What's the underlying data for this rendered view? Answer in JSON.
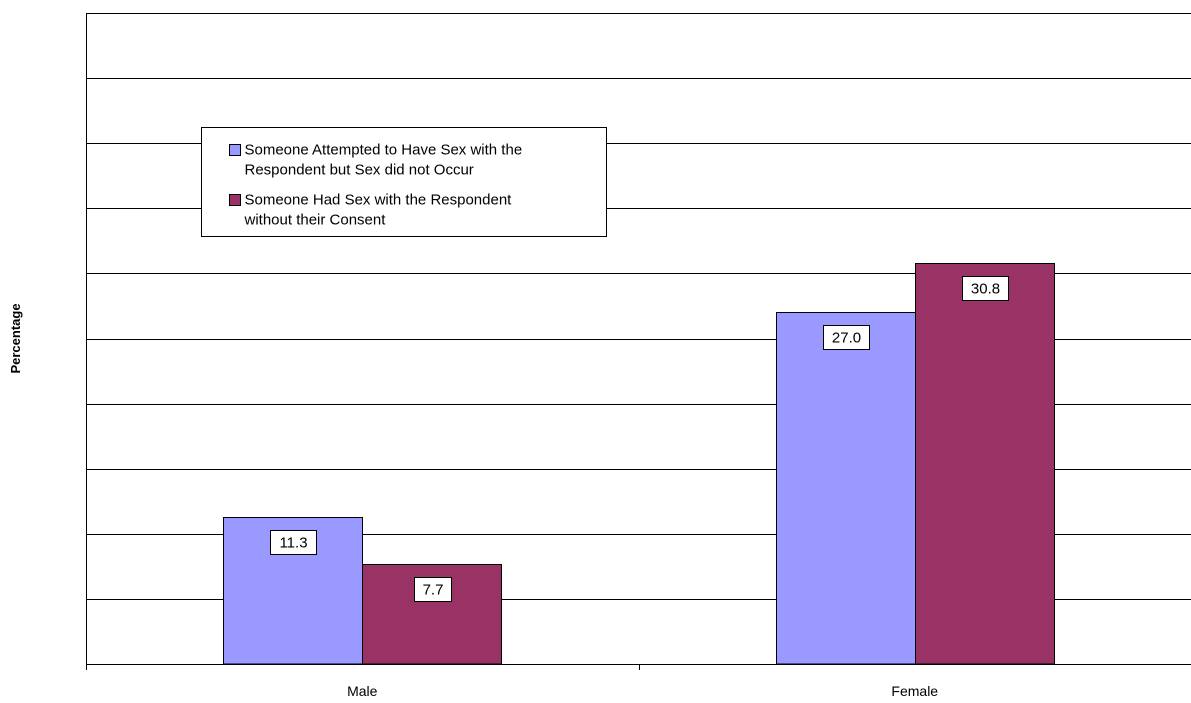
{
  "chart_data": {
    "type": "bar",
    "title": "",
    "xlabel": "",
    "ylabel": "Percentage",
    "ylim": [
      0,
      50
    ],
    "ytick_step": 5,
    "ytick_decimals": 1,
    "grid": true,
    "legend_position": "upper-left",
    "categories": [
      "Male",
      "Female"
    ],
    "series": [
      {
        "name": "Someone Attempted to Have Sex with the Respondent but Sex did not Occur",
        "legend_lines": [
          "Someone Attempted to Have Sex with the",
          "Respondent but Sex did not Occur"
        ],
        "color": "#9999ff",
        "values": [
          11.3,
          27.0
        ],
        "value_labels": [
          "11.3",
          "27.0"
        ]
      },
      {
        "name": "Someone Had Sex with the Respondent without their Consent",
        "legend_lines": [
          "Someone Had Sex with the Respondent",
          "without their Consent"
        ],
        "color": "#993366",
        "values": [
          7.7,
          30.8
        ],
        "value_labels": [
          "7.7",
          "30.8"
        ]
      }
    ]
  }
}
